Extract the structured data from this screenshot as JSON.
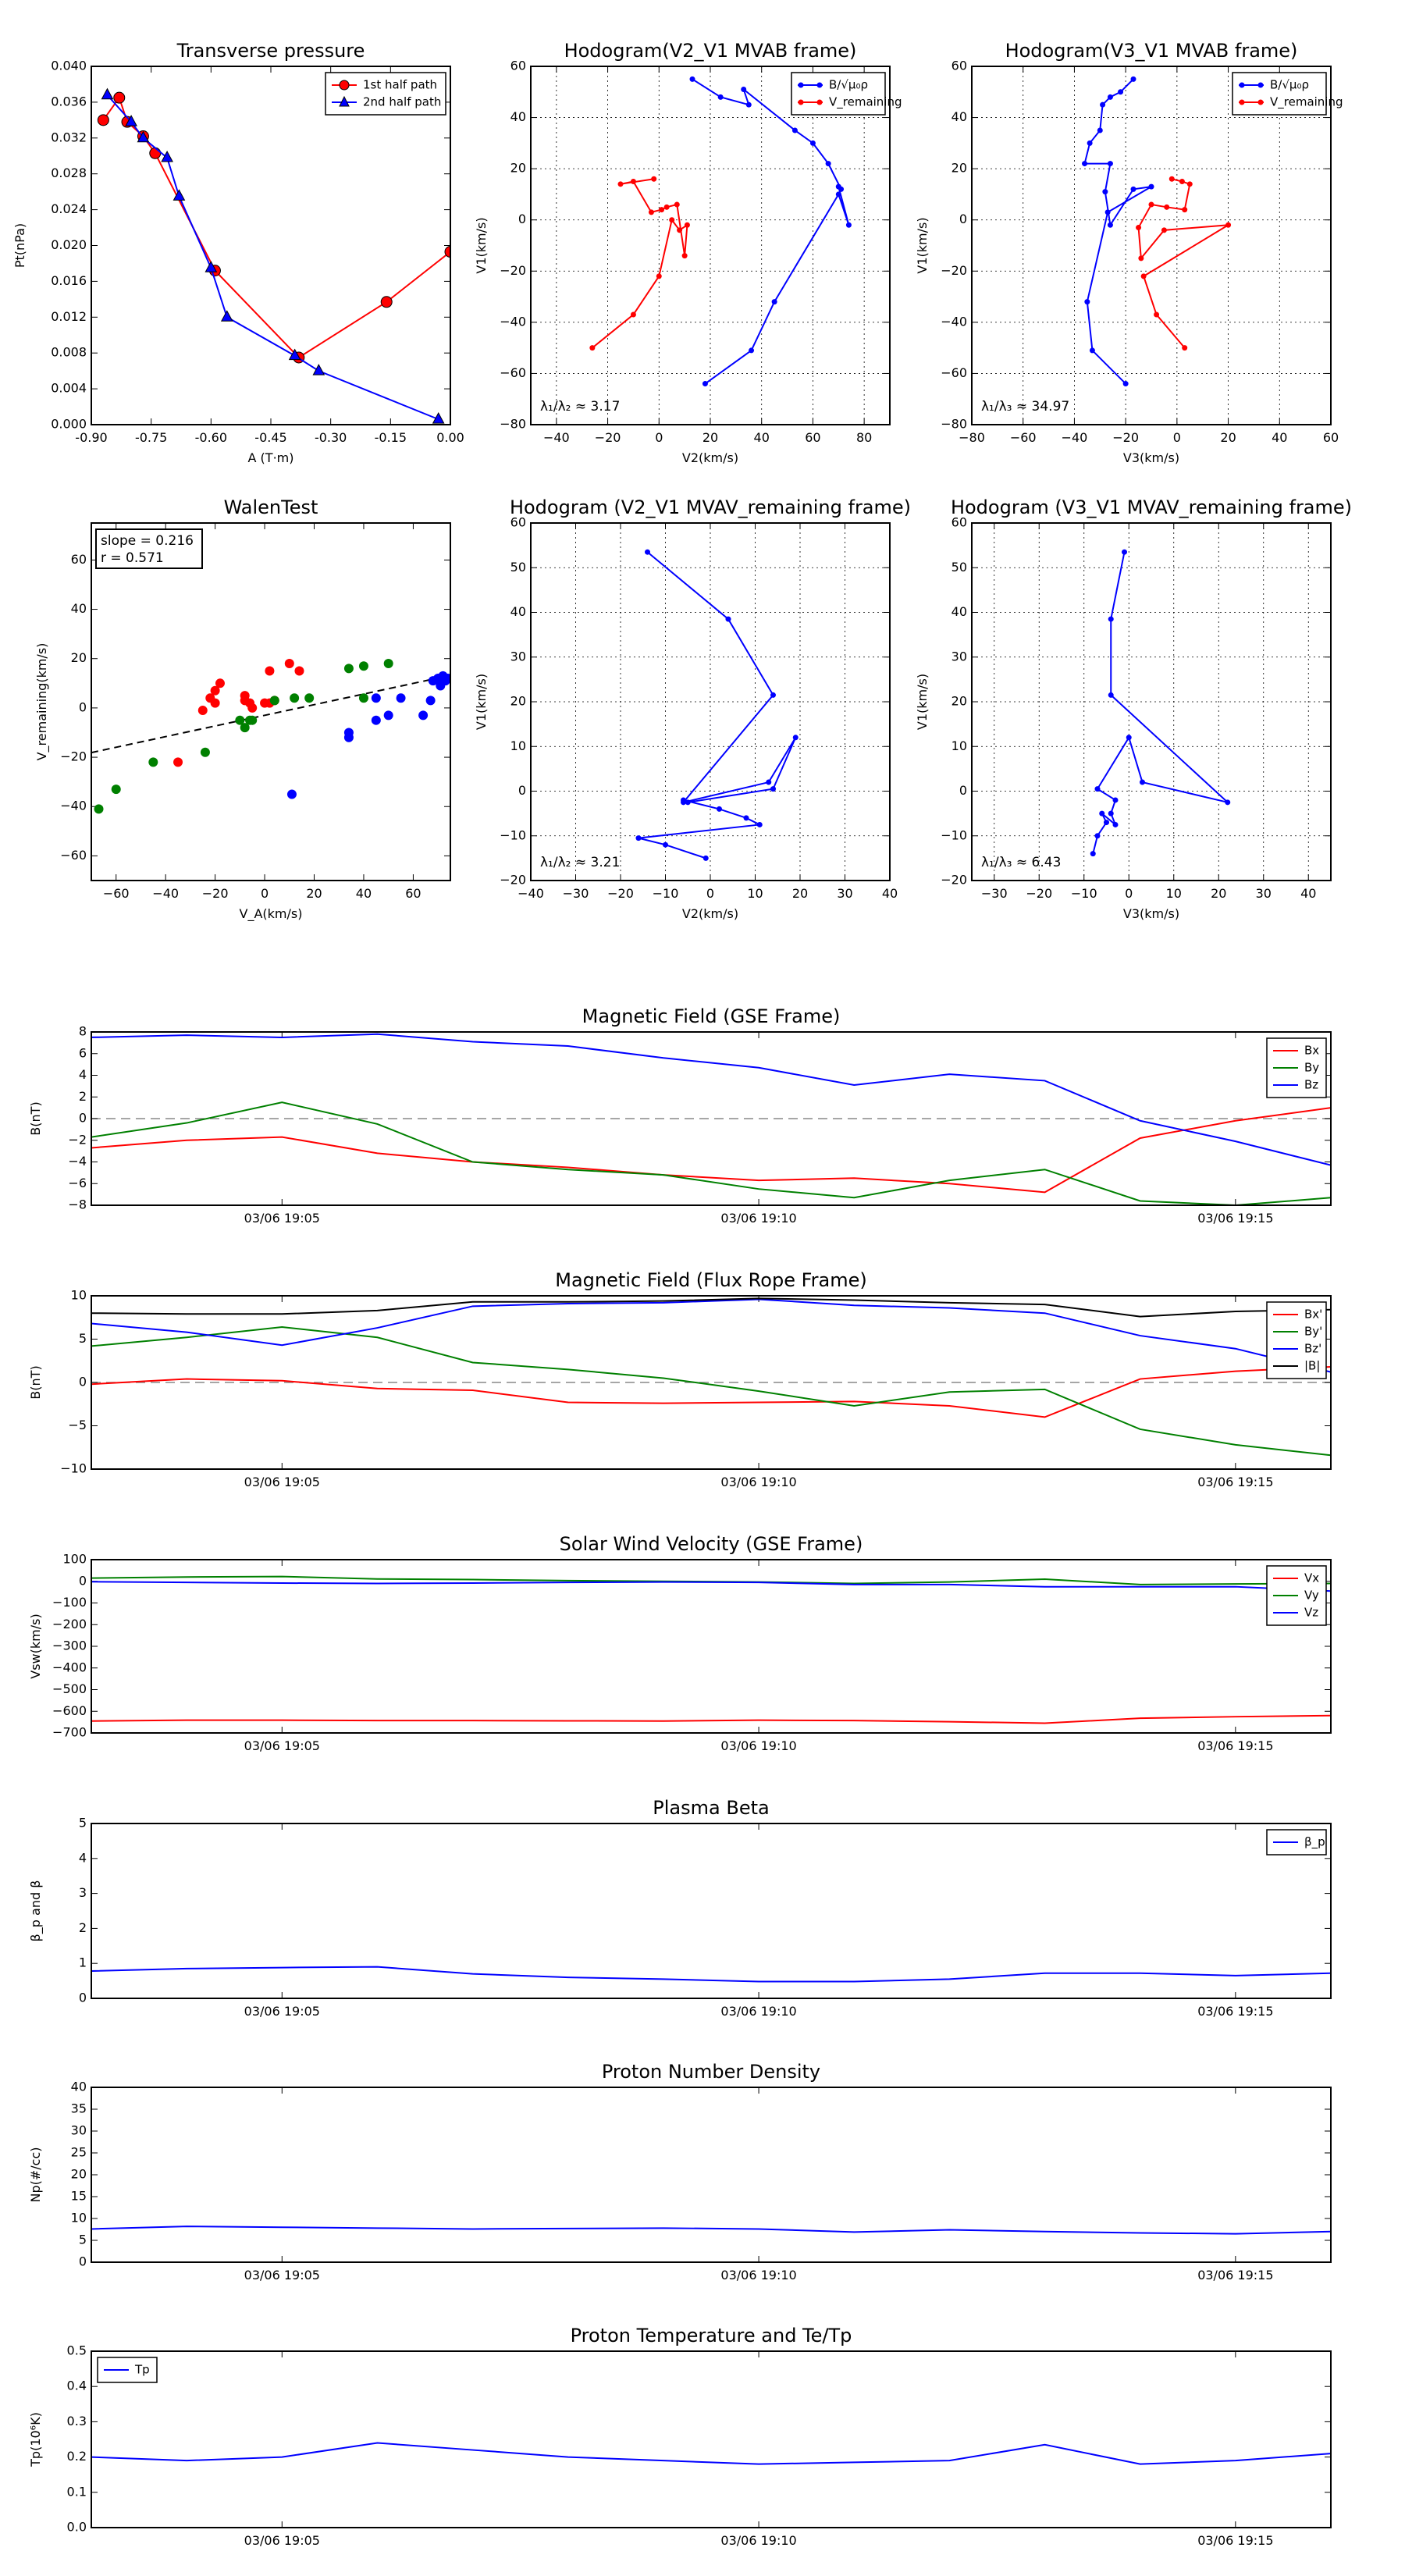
{
  "chart_data": [
    {
      "id": "pt",
      "type": "scatter",
      "title": "Transverse pressure",
      "xlabel": "A (T·m)",
      "ylabel": "Pt(nPa)",
      "xlim": [
        -0.9,
        0.0
      ],
      "ylim": [
        0.0,
        0.04
      ],
      "xticks": [
        -0.9,
        -0.75,
        -0.6,
        -0.45,
        -0.3,
        -0.15,
        0.0
      ],
      "xtick_labels": [
        "-0.90",
        "-0.75",
        "-0.60",
        "-0.45",
        "-0.30",
        "-0.15",
        "0.00"
      ],
      "yticks": [
        0,
        0.004,
        0.008,
        0.012,
        0.016,
        0.02,
        0.024,
        0.028,
        0.032,
        0.036,
        0.04
      ],
      "ytick_labels": [
        "0.000",
        "0.004",
        "0.008",
        "0.012",
        "0.016",
        "0.020",
        "0.024",
        "0.028",
        "0.032",
        "0.036",
        "0.040"
      ],
      "grid": false,
      "legend_position": "top-right",
      "series": [
        {
          "name": "1st half path",
          "color": "#ff0000",
          "marker": "circle",
          "x": [
            -0.87,
            -0.83,
            -0.81,
            -0.77,
            -0.74,
            -0.59,
            -0.38,
            -0.16,
            0.0
          ],
          "y": [
            0.034,
            0.0365,
            0.0338,
            0.0322,
            0.0303,
            0.0172,
            0.0075,
            0.0137,
            0.0193
          ]
        },
        {
          "name": "2nd half path",
          "color": "#0000ff",
          "marker": "triangle",
          "x": [
            -0.86,
            -0.8,
            -0.77,
            -0.71,
            -0.68,
            -0.6,
            -0.56,
            -0.39,
            -0.33,
            -0.03
          ],
          "y": [
            0.0368,
            0.0338,
            0.032,
            0.0298,
            0.0255,
            0.0175,
            0.012,
            0.0077,
            0.006,
            0.0006
          ]
        }
      ]
    },
    {
      "id": "h21",
      "type": "line",
      "title": "Hodogram(V2_V1 MVAB frame)",
      "xlabel": "V2(km/s)",
      "ylabel": "V1(km/s)",
      "xlim": [
        -50,
        90
      ],
      "ylim": [
        -80,
        60
      ],
      "xticks": [
        -40,
        -20,
        0,
        20,
        40,
        60,
        80
      ],
      "yticks": [
        -80,
        -60,
        -40,
        -20,
        0,
        20,
        40,
        60
      ],
      "grid": true,
      "legend_position": "top-right",
      "annotation": "λ₁/λ₂ ≈ 3.17",
      "series": [
        {
          "name": "B/√μ₀ρ",
          "color": "#0000ff",
          "x": [
            13,
            24,
            35,
            33,
            53,
            60,
            66,
            71,
            70,
            74,
            70,
            45,
            36,
            18
          ],
          "y": [
            55,
            48,
            45,
            51,
            35,
            30,
            22,
            12,
            13,
            -2,
            10,
            -32,
            -51,
            -64
          ]
        },
        {
          "name": "V_remaining",
          "color": "#ff0000",
          "x": [
            -2,
            -15,
            -10,
            -3,
            1,
            3,
            7,
            10,
            11,
            8,
            5,
            0,
            -10,
            -26
          ],
          "y": [
            16,
            14,
            15,
            3,
            4,
            5,
            6,
            -14,
            -2,
            -4,
            0,
            -22,
            -37,
            -50
          ]
        }
      ]
    },
    {
      "id": "h31",
      "type": "line",
      "title": "Hodogram(V3_V1 MVAB frame)",
      "xlabel": "V3(km/s)",
      "ylabel": "V1(km/s)",
      "xlim": [
        -80,
        60
      ],
      "ylim": [
        -80,
        60
      ],
      "xticks": [
        -80,
        -60,
        -40,
        -20,
        0,
        20,
        40,
        60
      ],
      "yticks": [
        -80,
        -60,
        -40,
        -20,
        0,
        20,
        40,
        60
      ],
      "grid": true,
      "legend_position": "top-right",
      "annotation": "λ₁/λ₃ ≈ 34.97",
      "series": [
        {
          "name": "B/√μ₀ρ",
          "color": "#0000ff",
          "x": [
            -17,
            -22,
            -26,
            -29,
            -30,
            -34,
            -36,
            -26,
            -28,
            -26,
            -17,
            -10,
            -27,
            -35,
            -33,
            -20
          ],
          "y": [
            55,
            50,
            48,
            45,
            35,
            30,
            22,
            22,
            11,
            -2,
            12,
            13,
            3,
            -32,
            -51,
            -64
          ]
        },
        {
          "name": "V_remaining",
          "color": "#ff0000",
          "x": [
            -2,
            2,
            5,
            3,
            -4,
            -10,
            -15,
            -14,
            -5,
            20,
            -13,
            -8,
            3
          ],
          "y": [
            16,
            15,
            14,
            4,
            5,
            6,
            -3,
            -15,
            -4,
            -2,
            -22,
            -37,
            -50
          ]
        }
      ]
    },
    {
      "id": "walen",
      "type": "scatter",
      "title": "WalenTest",
      "xlabel": "V_A(km/s)",
      "ylabel": "V_remaining(km/s)",
      "xlim": [
        -70,
        75
      ],
      "ylim": [
        -70,
        75
      ],
      "xticks": [
        -60,
        -40,
        -20,
        0,
        20,
        40,
        60
      ],
      "yticks": [
        -60,
        -40,
        -20,
        0,
        20,
        40,
        60
      ],
      "grid": false,
      "textbox": [
        "slope = 0.216",
        "r = 0.571"
      ],
      "fit_line": {
        "slope": 0.216,
        "intercept": -3
      },
      "series": [
        {
          "color": "#ff0000",
          "x": [
            -18,
            -20,
            -22,
            -25,
            -20,
            -8,
            -6,
            -5,
            -8,
            0,
            2,
            4,
            10,
            14,
            2,
            -35
          ],
          "y": [
            10,
            7,
            4,
            -1,
            2,
            5,
            2,
            0,
            3,
            2,
            15,
            3,
            18,
            15,
            2,
            -22
          ]
        },
        {
          "color": "#008000",
          "x": [
            -67,
            -60,
            -45,
            -24,
            -8,
            -10,
            -6,
            -5,
            4,
            12,
            18,
            34,
            40,
            50,
            40
          ],
          "y": [
            -41,
            -33,
            -22,
            -18,
            -8,
            -5,
            -5,
            -5,
            3,
            4,
            4,
            16,
            17,
            18,
            4
          ]
        },
        {
          "color": "#0000ff",
          "x": [
            11,
            34,
            34,
            45,
            45,
            50,
            55,
            64,
            67,
            68,
            70,
            71,
            72,
            74,
            73
          ],
          "y": [
            -35,
            -10,
            -12,
            -5,
            4,
            -3,
            4,
            -3,
            3,
            11,
            12,
            9,
            13,
            12,
            11
          ]
        }
      ]
    },
    {
      "id": "hr21",
      "type": "line",
      "title": "Hodogram (V2_V1 MVAV_remaining frame)",
      "xlabel": "V2(km/s)",
      "ylabel": "V1(km/s)",
      "xlim": [
        -40,
        40
      ],
      "ylim": [
        -20,
        60
      ],
      "xticks": [
        -40,
        -30,
        -20,
        -10,
        0,
        10,
        20,
        30,
        40
      ],
      "yticks": [
        -20,
        -10,
        0,
        10,
        20,
        30,
        40,
        50,
        60
      ],
      "grid": true,
      "annotation": "λ₁/λ₂ ≈ 3.21",
      "series": [
        {
          "color": "#0000ff",
          "x": [
            -14,
            4,
            14,
            -6,
            13,
            19,
            14,
            -5,
            -6,
            2,
            8,
            11,
            -16,
            -10,
            -1
          ],
          "y": [
            53.5,
            38.5,
            21.5,
            -2.5,
            2,
            12,
            0.5,
            -2.5,
            -2,
            -4,
            -6,
            -7.5,
            -10.5,
            -12,
            -15
          ]
        }
      ]
    },
    {
      "id": "hr31",
      "type": "line",
      "title": "Hodogram (V3_V1 MVAV_remaining frame)",
      "xlabel": "V3(km/s)",
      "ylabel": "V1(km/s)",
      "xlim": [
        -35,
        45
      ],
      "ylim": [
        -20,
        60
      ],
      "xticks": [
        -30,
        -20,
        -10,
        0,
        10,
        20,
        30,
        40
      ],
      "yticks": [
        -20,
        -10,
        0,
        10,
        20,
        30,
        40,
        50,
        60
      ],
      "grid": true,
      "annotation": "λ₁/λ₃ ≈ 6.43",
      "series": [
        {
          "color": "#0000ff",
          "x": [
            -1,
            -4,
            -4,
            22,
            3,
            0,
            -7,
            -3,
            -4,
            -3,
            -6,
            -5,
            -7,
            -8
          ],
          "y": [
            53.5,
            38.5,
            21.5,
            -2.5,
            2,
            12,
            0.5,
            -2,
            -5,
            -7.5,
            -5,
            -7,
            -10,
            -14
          ]
        }
      ]
    },
    {
      "id": "bgse",
      "type": "line",
      "title": "Magnetic Field (GSE Frame)",
      "ylabel": "B(nT)",
      "xlim": [
        0,
        13
      ],
      "ylim": [
        -8,
        8
      ],
      "yticks": [
        -8,
        -6,
        -4,
        -2,
        0,
        2,
        4,
        6,
        8
      ],
      "xticks": [
        2,
        7,
        12
      ],
      "xtick_labels": [
        "03/06 19:05",
        "03/06 19:10",
        "03/06 19:15"
      ],
      "zero_line": true,
      "legend_position": "top-right",
      "x": [
        0,
        1,
        2,
        3,
        4,
        5,
        6,
        7,
        8,
        9,
        10,
        11,
        12,
        13
      ],
      "series": [
        {
          "name": "Bx",
          "color": "#ff0000",
          "values": [
            -2.7,
            -2.0,
            -1.7,
            -3.2,
            -4.0,
            -4.5,
            -5.2,
            -5.7,
            -5.5,
            -6.0,
            -6.8,
            -1.8,
            -0.2,
            1.0
          ]
        },
        {
          "name": "By",
          "color": "#008000",
          "values": [
            -1.7,
            -0.4,
            1.5,
            -0.5,
            -4.0,
            -4.7,
            -5.2,
            -6.5,
            -7.3,
            -5.7,
            -4.7,
            -7.6,
            -8.0,
            -7.3
          ]
        },
        {
          "name": "Bz",
          "color": "#0000ff",
          "values": [
            7.5,
            7.7,
            7.5,
            7.8,
            7.1,
            6.7,
            5.6,
            4.7,
            3.1,
            4.1,
            3.5,
            -0.2,
            -2.1,
            -4.3
          ]
        }
      ]
    },
    {
      "id": "bfr",
      "type": "line",
      "title": "Magnetic Field (Flux Rope Frame)",
      "ylabel": "B(nT)",
      "xlim": [
        0,
        13
      ],
      "ylim": [
        -10,
        10
      ],
      "yticks": [
        -10,
        -5,
        0,
        5,
        10
      ],
      "xticks": [
        2,
        7,
        12
      ],
      "xtick_labels": [
        "03/06 19:05",
        "03/06 19:10",
        "03/06 19:15"
      ],
      "zero_line": true,
      "legend_position": "top-right",
      "x": [
        0,
        1,
        2,
        3,
        4,
        5,
        6,
        7,
        8,
        9,
        10,
        11,
        12,
        13
      ],
      "series": [
        {
          "name": "Bx'",
          "color": "#ff0000",
          "values": [
            -0.2,
            0.4,
            0.2,
            -0.7,
            -0.9,
            -2.3,
            -2.4,
            -2.3,
            -2.2,
            -2.7,
            -4.0,
            0.4,
            1.3,
            1.8
          ]
        },
        {
          "name": "By'",
          "color": "#008000",
          "values": [
            4.2,
            5.2,
            6.4,
            5.2,
            2.3,
            1.5,
            0.5,
            -1.0,
            -2.7,
            -1.1,
            -0.8,
            -5.4,
            -7.2,
            -8.4
          ]
        },
        {
          "name": "Bz'",
          "color": "#0000ff",
          "values": [
            6.8,
            5.8,
            4.3,
            6.3,
            8.8,
            9.1,
            9.2,
            9.6,
            8.9,
            8.6,
            8.0,
            5.4,
            3.9,
            1.2
          ]
        },
        {
          "name": "|B|",
          "color": "#000000",
          "values": [
            8.0,
            7.9,
            7.9,
            8.3,
            9.3,
            9.3,
            9.4,
            9.7,
            9.5,
            9.2,
            9.0,
            7.6,
            8.2,
            8.4
          ]
        }
      ]
    },
    {
      "id": "vsw",
      "type": "line",
      "title": "Solar Wind Velocity (GSE Frame)",
      "ylabel": "Vsw(km/s)",
      "xlim": [
        0,
        13
      ],
      "ylim": [
        -700,
        100
      ],
      "yticks": [
        -700,
        -600,
        -500,
        -400,
        -300,
        -200,
        -100,
        0,
        100
      ],
      "ytick_labels": [
        "−700",
        "−600",
        "−500",
        "−400",
        "−300",
        "−200",
        "−100",
        "0",
        "100"
      ],
      "xticks": [
        2,
        7,
        12
      ],
      "xtick_labels": [
        "03/06 19:05",
        "03/06 19:10",
        "03/06 19:15"
      ],
      "legend_position": "top-right",
      "x": [
        0,
        1,
        2,
        3,
        4,
        5,
        6,
        7,
        8,
        9,
        10,
        11,
        12,
        13
      ],
      "series": [
        {
          "name": "Vx",
          "color": "#ff0000",
          "values": [
            -645,
            -641,
            -641,
            -643,
            -643,
            -644,
            -645,
            -641,
            -643,
            -648,
            -655,
            -632,
            -625,
            -620
          ]
        },
        {
          "name": "Vy",
          "color": "#008000",
          "values": [
            15,
            20,
            22,
            11,
            8,
            3,
            0,
            -3,
            -10,
            -3,
            10,
            -15,
            -12,
            -10
          ]
        },
        {
          "name": "Vz",
          "color": "#0000ff",
          "values": [
            -2,
            -5,
            -8,
            -10,
            -8,
            -5,
            -3,
            -5,
            -15,
            -15,
            -25,
            -25,
            -25,
            -45
          ]
        }
      ]
    },
    {
      "id": "beta",
      "type": "line",
      "title": "Plasma Beta",
      "ylabel": "β_p and β",
      "xlim": [
        0,
        13
      ],
      "ylim": [
        0,
        5
      ],
      "yticks": [
        0,
        1,
        2,
        3,
        4,
        5
      ],
      "xticks": [
        2,
        7,
        12
      ],
      "xtick_labels": [
        "03/06 19:05",
        "03/06 19:10",
        "03/06 19:15"
      ],
      "legend_position": "top-right",
      "x": [
        0,
        1,
        2,
        3,
        4,
        5,
        6,
        7,
        8,
        9,
        10,
        11,
        12,
        13
      ],
      "series": [
        {
          "name": "β_p",
          "color": "#0000ff",
          "values": [
            0.78,
            0.85,
            0.88,
            0.9,
            0.7,
            0.6,
            0.55,
            0.48,
            0.48,
            0.55,
            0.72,
            0.72,
            0.65,
            0.72
          ]
        }
      ]
    },
    {
      "id": "np",
      "type": "line",
      "title": "Proton Number Density",
      "ylabel": "Np(#/cc)",
      "xlim": [
        0,
        13
      ],
      "ylim": [
        0,
        40
      ],
      "yticks": [
        0,
        5,
        10,
        15,
        20,
        25,
        30,
        35,
        40
      ],
      "xticks": [
        2,
        7,
        12
      ],
      "xtick_labels": [
        "03/06 19:05",
        "03/06 19:10",
        "03/06 19:15"
      ],
      "x": [
        0,
        1,
        2,
        3,
        4,
        5,
        6,
        7,
        8,
        9,
        10,
        11,
        12,
        13
      ],
      "series": [
        {
          "color": "#0000ff",
          "values": [
            7.6,
            8.2,
            8.0,
            7.8,
            7.6,
            7.7,
            7.8,
            7.6,
            6.9,
            7.4,
            7.0,
            6.7,
            6.5,
            7.0
          ]
        }
      ]
    },
    {
      "id": "tp",
      "type": "line",
      "title": "Proton Temperature and Te/Tp",
      "ylabel": "Tp(10⁶K)",
      "xlim": [
        0,
        13
      ],
      "ylim": [
        0,
        0.5
      ],
      "yticks": [
        0,
        0.1,
        0.2,
        0.3,
        0.4,
        0.5
      ],
      "ytick_labels": [
        "0.0",
        "0.1",
        "0.2",
        "0.3",
        "0.4",
        "0.5"
      ],
      "xticks": [
        2,
        7,
        12
      ],
      "xtick_labels": [
        "03/06 19:05",
        "03/06 19:10",
        "03/06 19:15"
      ],
      "legend_position": "top-left",
      "x": [
        0,
        1,
        2,
        3,
        4,
        5,
        6,
        7,
        8,
        9,
        10,
        11,
        12,
        13
      ],
      "series": [
        {
          "name": "Tp",
          "color": "#0000ff",
          "values": [
            0.2,
            0.19,
            0.2,
            0.24,
            0.22,
            0.2,
            0.19,
            0.18,
            0.185,
            0.19,
            0.235,
            0.18,
            0.19,
            0.21
          ]
        }
      ]
    }
  ]
}
